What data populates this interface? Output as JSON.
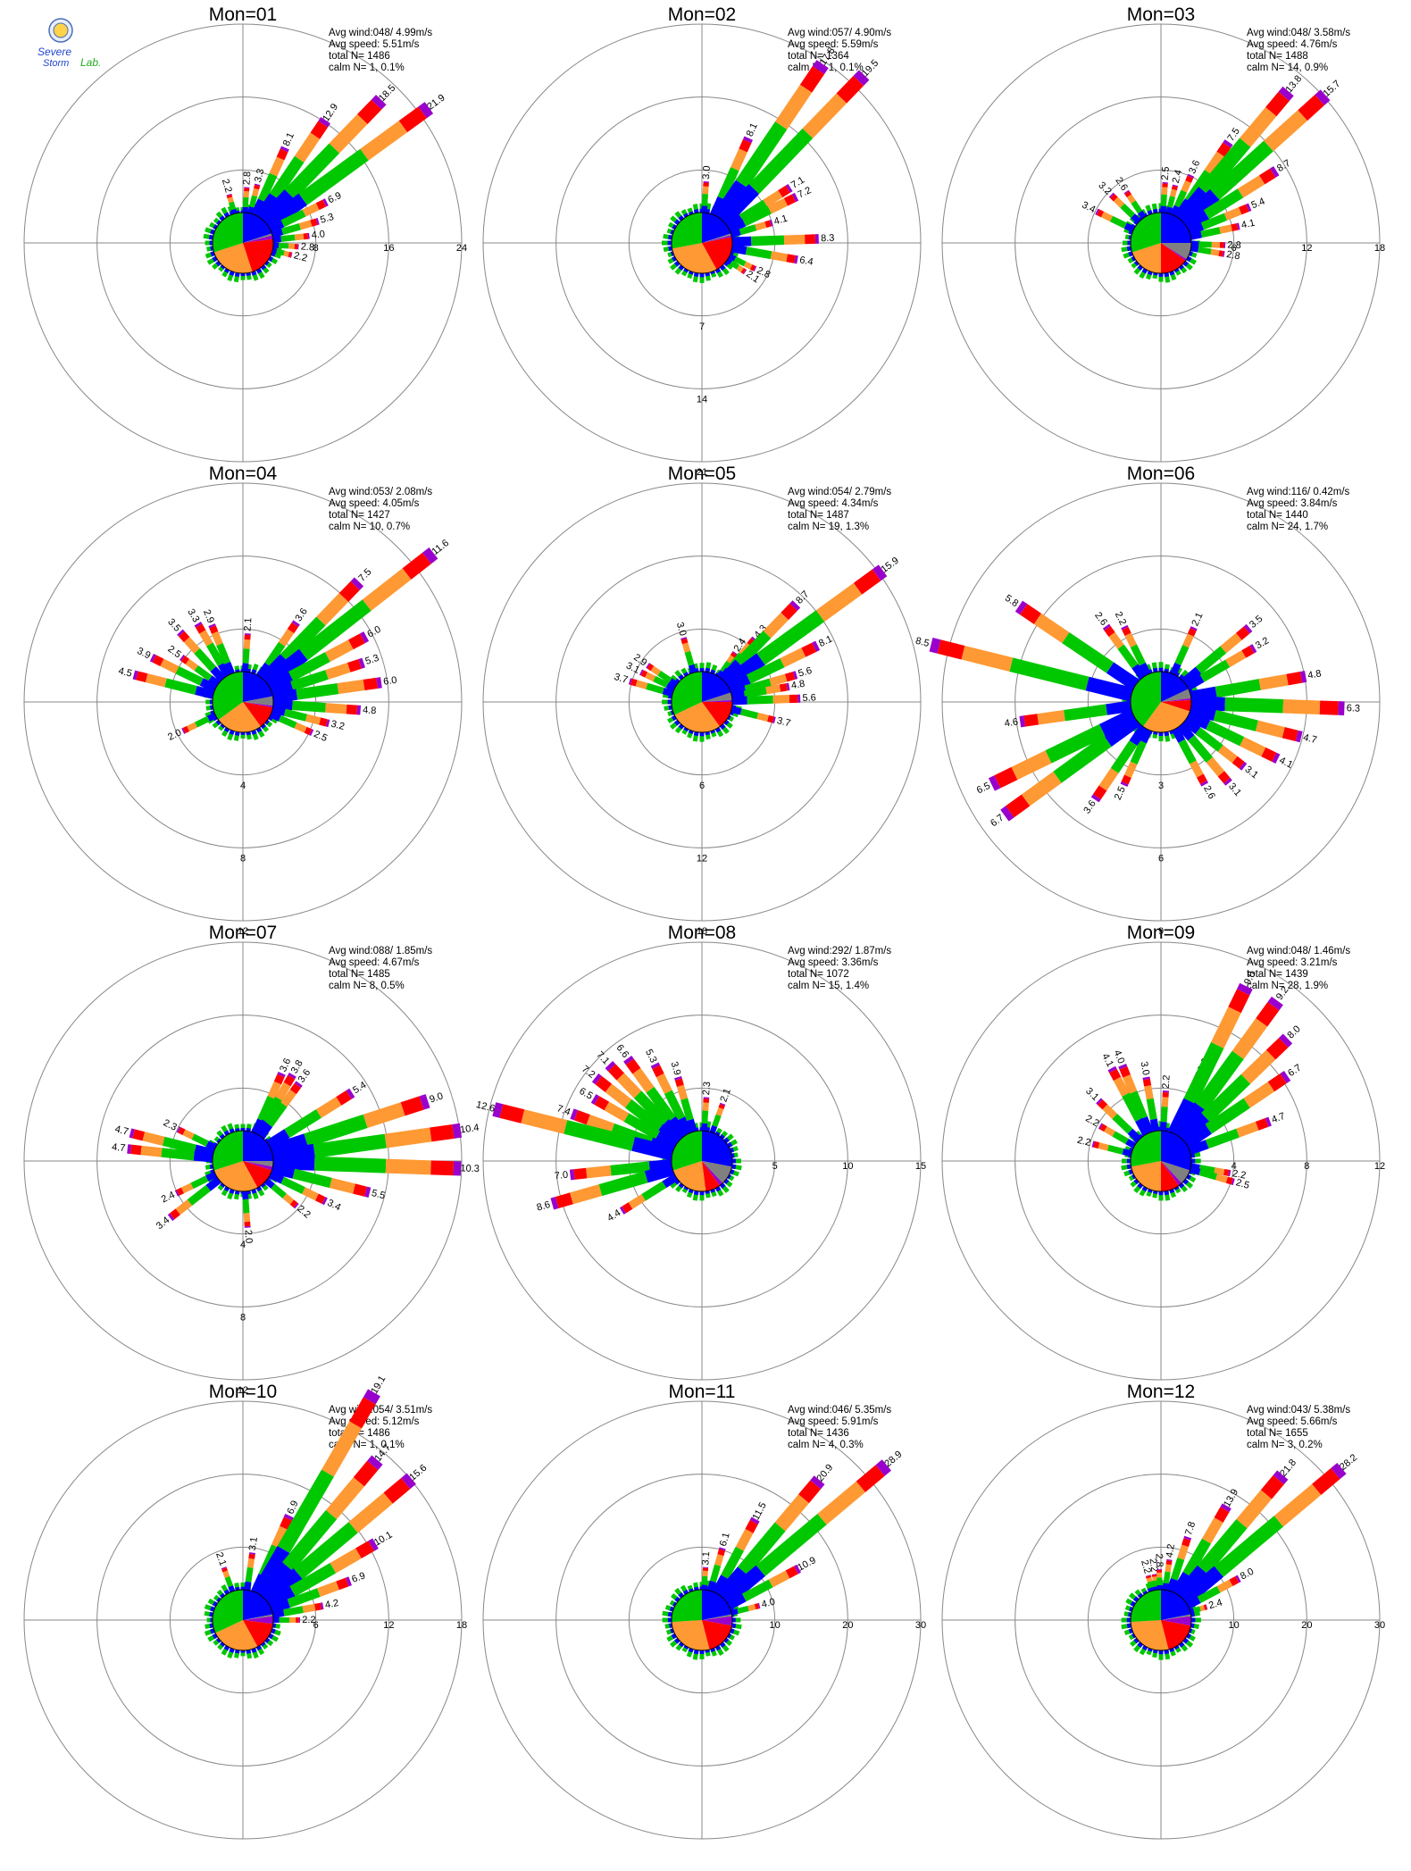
{
  "logo": {
    "text_top": "Severe",
    "text_mid": "Storm",
    "text_lab": "Lab."
  },
  "colors": {
    "speed_bins": [
      "#0000ff",
      "#00c800",
      "#ff9933",
      "#ff0000",
      "#9900cc"
    ],
    "calm": "#808080",
    "rings": "#888888",
    "axes": "#888888"
  },
  "chart_data": [
    {
      "type": "windrose",
      "title": "Mon=01",
      "stats": {
        "avg_wind": "Avg wind:048/ 4.99m/s",
        "avg_speed": "Avg speed: 5.51m/s",
        "total_n": "total N=      1486",
        "calm_n": "calm N=     1,   0.1%"
      },
      "rmax": 24,
      "ring_labels": [
        "8",
        "16",
        "24"
      ],
      "ring_label_dir": "east",
      "spokes": [
        {
          "dir": 4,
          "value": 2.8
        },
        {
          "dir": 14,
          "value": 3.3
        },
        {
          "dir": 24,
          "value": 8.1
        },
        {
          "dir": 34,
          "value": 12.9
        },
        {
          "dir": 44,
          "value": 18.5
        },
        {
          "dir": 54,
          "value": 21.9
        },
        {
          "dir": 64,
          "value": 6.9
        },
        {
          "dir": 74,
          "value": 5.3
        },
        {
          "dir": 84,
          "value": 4.0
        },
        {
          "dir": 94,
          "value": 2.8
        },
        {
          "dir": 104,
          "value": 2.2
        },
        {
          "dir": 344,
          "value": 2.2
        }
      ],
      "pie": [
        0.2,
        0.3,
        0.25,
        0.22,
        0.02,
        0.01
      ]
    },
    {
      "type": "windrose",
      "title": "Mon=02",
      "stats": {
        "avg_wind": "Avg wind:057/ 4.90m/s",
        "avg_speed": "Avg speed: 5.59m/s",
        "total_n": "total N=      1364",
        "calm_n": "calm N=     1,   0.1%"
      },
      "rmax": 21,
      "ring_labels": [
        "7",
        "14",
        "21"
      ],
      "ring_label_dir": "south",
      "spokes": [
        {
          "dir": 4,
          "value": 3.0
        },
        {
          "dir": 24,
          "value": 8.1
        },
        {
          "dir": 34,
          "value": 17.8
        },
        {
          "dir": 44,
          "value": 19.5
        },
        {
          "dir": 58,
          "value": 7.1
        },
        {
          "dir": 64,
          "value": 7.2
        },
        {
          "dir": 74,
          "value": 4.1
        },
        {
          "dir": 88,
          "value": 8.3
        },
        {
          "dir": 100,
          "value": 6.4
        },
        {
          "dir": 116,
          "value": 2.8
        },
        {
          "dir": 124,
          "value": 2.1
        }
      ],
      "pie": [
        0.2,
        0.28,
        0.3,
        0.2,
        0.01,
        0.01
      ]
    },
    {
      "type": "windrose",
      "title": "Mon=03",
      "stats": {
        "avg_wind": "Avg wind:048/ 3.58m/s",
        "avg_speed": "Avg speed: 4.76m/s",
        "total_n": "total N=      1488",
        "calm_n": "calm N=    14,   0.9%"
      },
      "rmax": 18,
      "ring_labels": [
        "6",
        "12",
        "18"
      ],
      "ring_label_dir": "east",
      "spokes": [
        {
          "dir": 4,
          "value": 2.5
        },
        {
          "dir": 14,
          "value": 2.4
        },
        {
          "dir": 24,
          "value": 3.6
        },
        {
          "dir": 34,
          "value": 7.5
        },
        {
          "dir": 40,
          "value": 13.8
        },
        {
          "dir": 48,
          "value": 15.7
        },
        {
          "dir": 58,
          "value": 8.7
        },
        {
          "dir": 68,
          "value": 5.4
        },
        {
          "dir": 78,
          "value": 4.1
        },
        {
          "dir": 92,
          "value": 2.8
        },
        {
          "dir": 100,
          "value": 2.8
        },
        {
          "dir": 314,
          "value": 3.2
        },
        {
          "dir": 326,
          "value": 2.6
        },
        {
          "dir": 296,
          "value": 3.4
        }
      ],
      "pie": [
        0.25,
        0.3,
        0.2,
        0.15,
        0.01,
        0.09
      ]
    },
    {
      "type": "windrose",
      "title": "Mon=04",
      "stats": {
        "avg_wind": "Avg wind:053/ 2.08m/s",
        "avg_speed": "Avg speed: 4.05m/s",
        "total_n": "total N=      1427",
        "calm_n": "calm N=    10,   0.7%"
      },
      "rmax": 12,
      "ring_labels": [
        "4",
        "8",
        "12"
      ],
      "ring_label_dir": "south",
      "spokes": [
        {
          "dir": 4,
          "value": 2.1
        },
        {
          "dir": 34,
          "value": 3.6
        },
        {
          "dir": 44,
          "value": 7.5
        },
        {
          "dir": 52,
          "value": 11.6
        },
        {
          "dir": 62,
          "value": 6.0
        },
        {
          "dir": 72,
          "value": 5.3
        },
        {
          "dir": 82,
          "value": 6.0
        },
        {
          "dir": 94,
          "value": 4.8
        },
        {
          "dir": 104,
          "value": 3.2
        },
        {
          "dir": 114,
          "value": 2.5
        },
        {
          "dir": 244,
          "value": 2.0
        },
        {
          "dir": 284,
          "value": 4.5
        },
        {
          "dir": 296,
          "value": 3.9
        },
        {
          "dir": 306,
          "value": 2.5
        },
        {
          "dir": 318,
          "value": 3.5
        },
        {
          "dir": 330,
          "value": 3.3
        },
        {
          "dir": 338,
          "value": 2.9
        }
      ],
      "pie": [
        0.22,
        0.35,
        0.25,
        0.12,
        0.01,
        0.05
      ]
    },
    {
      "type": "windrose",
      "title": "Mon=05",
      "stats": {
        "avg_wind": "Avg wind:054/ 2.79m/s",
        "avg_speed": "Avg speed: 4.34m/s",
        "total_n": "total N=      1487",
        "calm_n": "calm N=    19,   1.3%"
      },
      "rmax": 18,
      "ring_labels": [
        "6",
        "12",
        "18"
      ],
      "ring_label_dir": "south",
      "spokes": [
        {
          "dir": 34,
          "value": 2.4
        },
        {
          "dir": 40,
          "value": 4.3
        },
        {
          "dir": 44,
          "value": 8.7
        },
        {
          "dir": 54,
          "value": 15.9
        },
        {
          "dir": 64,
          "value": 8.1
        },
        {
          "dir": 74,
          "value": 5.6
        },
        {
          "dir": 80,
          "value": 4.8
        },
        {
          "dir": 88,
          "value": 5.6
        },
        {
          "dir": 104,
          "value": 3.7
        },
        {
          "dir": 286,
          "value": 3.7
        },
        {
          "dir": 296,
          "value": 3.1
        },
        {
          "dir": 304,
          "value": 2.9
        },
        {
          "dir": 344,
          "value": 3.0
        }
      ],
      "pie": [
        0.2,
        0.32,
        0.28,
        0.15,
        0.01,
        0.04
      ]
    },
    {
      "type": "windrose",
      "title": "Mon=06",
      "stats": {
        "avg_wind": "Avg wind:116/ 0.42m/s",
        "avg_speed": "Avg speed: 3.84m/s",
        "total_n": "total N=      1440",
        "calm_n": "calm N=    24,   1.7%"
      },
      "rmax": 9,
      "ring_labels": [
        "3",
        "6",
        "9"
      ],
      "ring_label_dir": "south",
      "spokes": [
        {
          "dir": 24,
          "value": 2.1
        },
        {
          "dir": 50,
          "value": 3.5
        },
        {
          "dir": 60,
          "value": 3.2
        },
        {
          "dir": 80,
          "value": 4.8
        },
        {
          "dir": 92,
          "value": 6.3
        },
        {
          "dir": 104,
          "value": 4.7
        },
        {
          "dir": 116,
          "value": 4.1
        },
        {
          "dir": 128,
          "value": 3.1
        },
        {
          "dir": 140,
          "value": 3.1
        },
        {
          "dir": 152,
          "value": 2.6
        },
        {
          "dir": 204,
          "value": 2.5
        },
        {
          "dir": 214,
          "value": 3.6
        },
        {
          "dir": 234,
          "value": 6.7
        },
        {
          "dir": 244,
          "value": 6.5
        },
        {
          "dir": 262,
          "value": 4.6
        },
        {
          "dir": 284,
          "value": 8.5
        },
        {
          "dir": 304,
          "value": 5.8
        },
        {
          "dir": 324,
          "value": 2.6
        },
        {
          "dir": 334,
          "value": 2.2
        }
      ],
      "pie": [
        0.18,
        0.4,
        0.3,
        0.06,
        0.01,
        0.05
      ]
    },
    {
      "type": "windrose",
      "title": "Mon=07",
      "stats": {
        "avg_wind": "Avg wind:088/ 1.85m/s",
        "avg_speed": "Avg speed: 4.67m/s",
        "total_n": "total N=      1485",
        "calm_n": "calm N=     8,   0.5%"
      },
      "rmax": 12,
      "ring_labels": [
        "4",
        "8",
        "12"
      ],
      "ring_label_dir": "south",
      "spokes": [
        {
          "dir": 24,
          "value": 3.6
        },
        {
          "dir": 30,
          "value": 3.8
        },
        {
          "dir": 36,
          "value": 3.6
        },
        {
          "dir": 58,
          "value": 5.4
        },
        {
          "dir": 72,
          "value": 9.0
        },
        {
          "dir": 82,
          "value": 10.4
        },
        {
          "dir": 92,
          "value": 10.3
        },
        {
          "dir": 104,
          "value": 5.5
        },
        {
          "dir": 116,
          "value": 3.4
        },
        {
          "dir": 130,
          "value": 2.2
        },
        {
          "dir": 176,
          "value": 2.0
        },
        {
          "dir": 232,
          "value": 3.4
        },
        {
          "dir": 244,
          "value": 2.4
        },
        {
          "dir": 276,
          "value": 4.7
        },
        {
          "dir": 284,
          "value": 4.7
        },
        {
          "dir": 296,
          "value": 2.3
        }
      ],
      "pie": [
        0.25,
        0.3,
        0.28,
        0.12,
        0.02,
        0.03
      ]
    },
    {
      "type": "windrose",
      "title": "Mon=08",
      "stats": {
        "avg_wind": "Avg wind:292/ 1.87m/s",
        "avg_speed": "Avg speed: 3.36m/s",
        "total_n": "total N=      1072",
        "calm_n": "calm N=    15,   1.4%"
      },
      "rmax": 15,
      "ring_labels": [
        "5",
        "10",
        "15"
      ],
      "ring_label_dir": "east",
      "spokes": [
        {
          "dir": 4,
          "value": 2.3
        },
        {
          "dir": 20,
          "value": 2.1
        },
        {
          "dir": 334,
          "value": 5.3
        },
        {
          "dir": 344,
          "value": 3.9
        },
        {
          "dir": 324,
          "value": 6.6
        },
        {
          "dir": 316,
          "value": 7.1
        },
        {
          "dir": 308,
          "value": 7.2
        },
        {
          "dir": 300,
          "value": 6.5
        },
        {
          "dir": 290,
          "value": 7.4
        },
        {
          "dir": 284,
          "value": 12.6
        },
        {
          "dir": 264,
          "value": 7.0
        },
        {
          "dir": 254,
          "value": 8.6
        },
        {
          "dir": 238,
          "value": 4.4
        }
      ],
      "pie": [
        0.28,
        0.3,
        0.22,
        0.08,
        0.02,
        0.1
      ]
    },
    {
      "type": "windrose",
      "title": "Mon=09",
      "stats": {
        "avg_wind": "Avg wind:048/ 1.46m/s",
        "avg_speed": "Avg speed: 3.21m/s",
        "total_n": "total N=      1439",
        "calm_n": "calm N=    28,   1.9%"
      },
      "rmax": 12,
      "ring_labels": [
        "4",
        "8",
        "12"
      ],
      "ring_label_dir": "east",
      "spokes": [
        {
          "dir": 4,
          "value": 2.2
        },
        {
          "dir": 350,
          "value": 3.0
        },
        {
          "dir": 338,
          "value": 4.0
        },
        {
          "dir": 332,
          "value": 4.1
        },
        {
          "dir": 24,
          "value": 3.6
        },
        {
          "dir": 26,
          "value": 9.0
        },
        {
          "dir": 36,
          "value": 9.2
        },
        {
          "dir": 46,
          "value": 8.0
        },
        {
          "dir": 56,
          "value": 6.7
        },
        {
          "dir": 70,
          "value": 4.7
        },
        {
          "dir": 100,
          "value": 2.2
        },
        {
          "dir": 106,
          "value": 2.5
        },
        {
          "dir": 314,
          "value": 3.1
        },
        {
          "dir": 300,
          "value": 2.2
        },
        {
          "dir": 284,
          "value": 2.2
        }
      ],
      "pie": [
        0.3,
        0.28,
        0.22,
        0.1,
        0.02,
        0.08
      ]
    },
    {
      "type": "windrose",
      "title": "Mon=10",
      "stats": {
        "avg_wind": "Avg wind:054/ 3.51m/s",
        "avg_speed": "Avg speed: 5.12m/s",
        "total_n": "total N=      1486",
        "calm_n": "calm N=     1,   0.1%"
      },
      "rmax": 18,
      "ring_labels": [
        "6",
        "12",
        "18"
      ],
      "ring_label_dir": "east",
      "spokes": [
        {
          "dir": 8,
          "value": 3.1
        },
        {
          "dir": 24,
          "value": 6.9
        },
        {
          "dir": 30,
          "value": 19.1
        },
        {
          "dir": 40,
          "value": 14.7
        },
        {
          "dir": 50,
          "value": 15.6
        },
        {
          "dir": 60,
          "value": 10.1
        },
        {
          "dir": 70,
          "value": 6.9
        },
        {
          "dir": 80,
          "value": 4.2
        },
        {
          "dir": 90,
          "value": 2.2
        },
        {
          "dir": 340,
          "value": 2.1
        }
      ],
      "pie": [
        0.22,
        0.32,
        0.26,
        0.15,
        0.04,
        0.01
      ]
    },
    {
      "type": "windrose",
      "title": "Mon=11",
      "stats": {
        "avg_wind": "Avg wind:046/ 5.35m/s",
        "avg_speed": "Avg speed: 5.91m/s",
        "total_n": "total N=      1436",
        "calm_n": "calm N=     4,   0.3%"
      },
      "rmax": 30,
      "ring_labels": [
        "10",
        "20",
        "30"
      ],
      "ring_label_dir": "east",
      "spokes": [
        {
          "dir": 4,
          "value": 3.1
        },
        {
          "dir": 16,
          "value": 6.1
        },
        {
          "dir": 28,
          "value": 11.5
        },
        {
          "dir": 40,
          "value": 20.9
        },
        {
          "dir": 50,
          "value": 28.9
        },
        {
          "dir": 62,
          "value": 10.9
        },
        {
          "dir": 76,
          "value": 4.0
        }
      ],
      "pie": [
        0.22,
        0.26,
        0.28,
        0.18,
        0.05,
        0.01
      ]
    },
    {
      "type": "windrose",
      "title": "Mon=12",
      "stats": {
        "avg_wind": "Avg wind:043/ 5.38m/s",
        "avg_speed": "Avg speed: 5.66m/s",
        "total_n": "total N=      1655",
        "calm_n": "calm N=     3,   0.2%"
      },
      "rmax": 30,
      "ring_labels": [
        "10",
        "20",
        "30"
      ],
      "ring_label_dir": "east",
      "spokes": [
        {
          "dir": 344,
          "value": 2.2
        },
        {
          "dir": 352,
          "value": 2.2
        },
        {
          "dir": 358,
          "value": 2.8
        },
        {
          "dir": 8,
          "value": 4.2
        },
        {
          "dir": 18,
          "value": 7.8
        },
        {
          "dir": 30,
          "value": 13.9
        },
        {
          "dir": 40,
          "value": 21.8
        },
        {
          "dir": 50,
          "value": 28.2
        },
        {
          "dir": 62,
          "value": 8.0
        },
        {
          "dir": 74,
          "value": 2.4
        }
      ],
      "pie": [
        0.22,
        0.26,
        0.28,
        0.18,
        0.05,
        0.01
      ]
    }
  ]
}
